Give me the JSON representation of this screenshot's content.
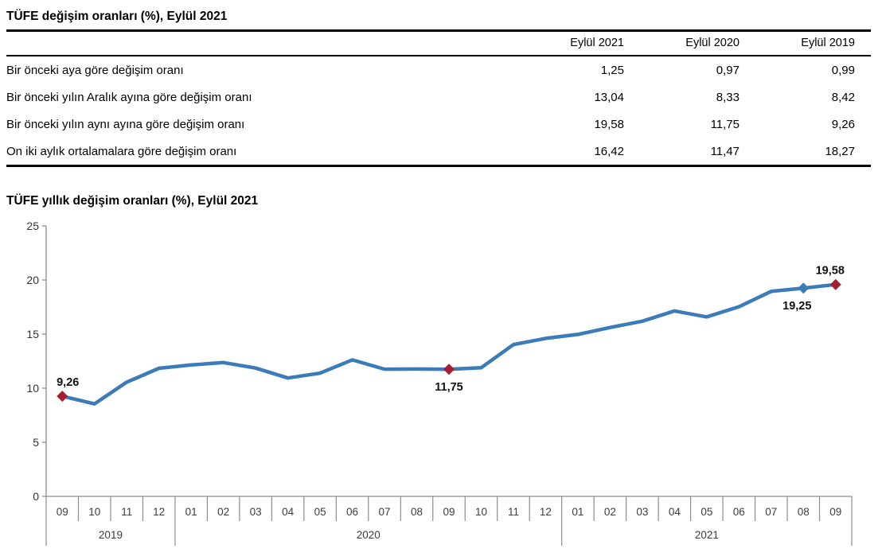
{
  "table": {
    "title": "TÜFE değişim oranları (%), Eylül 2021",
    "columns": [
      "Eylül 2021",
      "Eylül 2020",
      "Eylül 2019"
    ],
    "rows": [
      {
        "label": "Bir önceki aya göre değişim oranı",
        "values": [
          "1,25",
          "0,97",
          "0,99"
        ]
      },
      {
        "label": "Bir önceki yılın Aralık ayına göre değişim oranı",
        "values": [
          "13,04",
          "8,33",
          "8,42"
        ]
      },
      {
        "label": "Bir önceki yılın aynı ayına göre değişim oranı",
        "values": [
          "19,58",
          "11,75",
          "9,26"
        ]
      },
      {
        "label": "On iki aylık ortalamalara göre değişim oranı",
        "values": [
          "16,42",
          "11,47",
          "18,27"
        ]
      }
    ]
  },
  "chart": {
    "title": "TÜFE yıllık değişim oranları (%), Eylül 2021"
  },
  "chart_data": {
    "type": "line",
    "title": "TÜFE yıllık değişim oranları (%), Eylül 2021",
    "months": [
      "09",
      "10",
      "11",
      "12",
      "01",
      "02",
      "03",
      "04",
      "05",
      "06",
      "07",
      "08",
      "09",
      "10",
      "11",
      "12",
      "01",
      "02",
      "03",
      "04",
      "05",
      "06",
      "07",
      "08",
      "09"
    ],
    "year_groups": [
      {
        "label": "2019",
        "months": 4
      },
      {
        "label": "2020",
        "months": 12
      },
      {
        "label": "2021",
        "months": 9
      }
    ],
    "values": [
      9.26,
      8.55,
      10.56,
      11.84,
      12.15,
      12.37,
      11.86,
      10.94,
      11.39,
      12.62,
      11.76,
      11.77,
      11.75,
      11.89,
      14.03,
      14.6,
      14.97,
      15.61,
      16.19,
      17.14,
      16.59,
      17.53,
      18.95,
      19.25,
      19.58
    ],
    "ylim": [
      0,
      25
    ],
    "yticks": [
      0,
      5,
      10,
      15,
      20,
      25
    ],
    "grid": false,
    "legend": false,
    "line_color": "#3B7CB8",
    "axis_color": "#8C8C8C",
    "annotated_points": [
      {
        "index": 0,
        "label": "9,26",
        "marker_color": "#A31E30",
        "label_pos": "above",
        "label_dx": 7
      },
      {
        "index": 12,
        "label": "11,75",
        "marker_color": "#A31E30",
        "label_pos": "below",
        "label_dx": 0
      },
      {
        "index": 23,
        "label": "19,25",
        "marker_color": "#3B7CB8",
        "label_pos": "below",
        "label_dx": -8
      },
      {
        "index": 24,
        "label": "19,58",
        "marker_color": "#A31E30",
        "label_pos": "above",
        "label_dx": -7
      }
    ]
  }
}
